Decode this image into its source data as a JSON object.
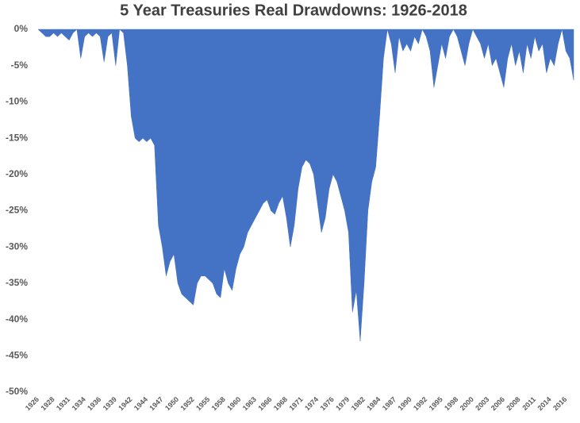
{
  "chart_data": {
    "type": "area",
    "title": "5 Year Treasuries Real Drawdowns: 1926-2018",
    "color": "#4472c4",
    "ylim": [
      -50,
      0
    ],
    "yticks": [
      {
        "value": 0,
        "label": "0%"
      },
      {
        "value": -5,
        "label": "-5%"
      },
      {
        "value": -10,
        "label": "-10%"
      },
      {
        "value": -15,
        "label": "-15%"
      },
      {
        "value": -20,
        "label": "-20%"
      },
      {
        "value": -25,
        "label": "-25%"
      },
      {
        "value": -30,
        "label": "-30%"
      },
      {
        "value": -35,
        "label": "-35%"
      },
      {
        "value": -40,
        "label": "-40%"
      },
      {
        "value": -45,
        "label": "-45%"
      },
      {
        "value": -50,
        "label": "-50%"
      }
    ],
    "grid": false,
    "categories": [
      "1926",
      null,
      null,
      null,
      "1928",
      null,
      null,
      null,
      "1931",
      null,
      null,
      null,
      "1934",
      null,
      null,
      null,
      "1936",
      null,
      null,
      null,
      "1939",
      null,
      null,
      null,
      "1942",
      null,
      null,
      null,
      "1944",
      null,
      null,
      null,
      "1947",
      null,
      null,
      null,
      "1950",
      null,
      null,
      null,
      "1952",
      null,
      null,
      null,
      "1955",
      null,
      null,
      null,
      "1958",
      null,
      null,
      null,
      "1960",
      null,
      null,
      null,
      "1963",
      null,
      null,
      null,
      "1966",
      null,
      null,
      null,
      "1968",
      null,
      null,
      null,
      "1971",
      null,
      null,
      null,
      "1974",
      null,
      null,
      null,
      "1976",
      null,
      null,
      null,
      "1979",
      null,
      null,
      null,
      "1982",
      null,
      null,
      null,
      "1984",
      null,
      null,
      null,
      "1987",
      null,
      null,
      null,
      "1990",
      null,
      null,
      null,
      "1992",
      null,
      null,
      null,
      "1995",
      null,
      null,
      null,
      "1998",
      null,
      null,
      null,
      "2000",
      null,
      null,
      null,
      "2003",
      null,
      null,
      null,
      "2006",
      null,
      null,
      null,
      "2008",
      null,
      null,
      null,
      "2011",
      null,
      null,
      null,
      "2014",
      null,
      null,
      null,
      "2016",
      null,
      null
    ],
    "values": [
      0,
      -0.5,
      -1,
      -1,
      -0.5,
      -1,
      -0.5,
      -1,
      -1.5,
      -0.5,
      0,
      -4,
      -1,
      -0.5,
      -1,
      -0.5,
      -1,
      -4.5,
      -1,
      -0.5,
      -5,
      0,
      -0.5,
      -5,
      -12,
      -15,
      -15.5,
      -15,
      -15.5,
      -15,
      -16,
      -27,
      -30,
      -34,
      -32,
      -31,
      -35,
      -36.5,
      -37,
      -37.5,
      -38,
      -35,
      -34,
      -34,
      -34.5,
      -35,
      -36.5,
      -37,
      -33,
      -35,
      -36,
      -33,
      -31,
      -30,
      -28,
      -27,
      -26,
      -25,
      -24,
      -23.5,
      -25,
      -25.5,
      -24,
      -23,
      -26,
      -30,
      -27,
      -22,
      -19,
      -18,
      -18.5,
      -20,
      -24,
      -28,
      -26,
      -22,
      -20,
      -21,
      -23,
      -25,
      -28,
      -39,
      -36,
      -43,
      -35,
      -25,
      -21,
      -19,
      -12,
      -4,
      0,
      -2,
      -6,
      -1,
      -3,
      -2,
      -3,
      -1,
      -2,
      0,
      -1,
      -3,
      -8,
      -5,
      -2,
      -4,
      -1,
      0,
      -1,
      -3,
      -5,
      -2,
      0,
      -1,
      -2,
      -4,
      -2,
      -5,
      -4,
      -6,
      -8,
      -4,
      -2,
      -5,
      -3,
      -6,
      -2,
      -4,
      -1,
      -3,
      -2,
      -6,
      -4,
      -5,
      -2,
      0,
      -3,
      -4,
      -7
    ]
  }
}
